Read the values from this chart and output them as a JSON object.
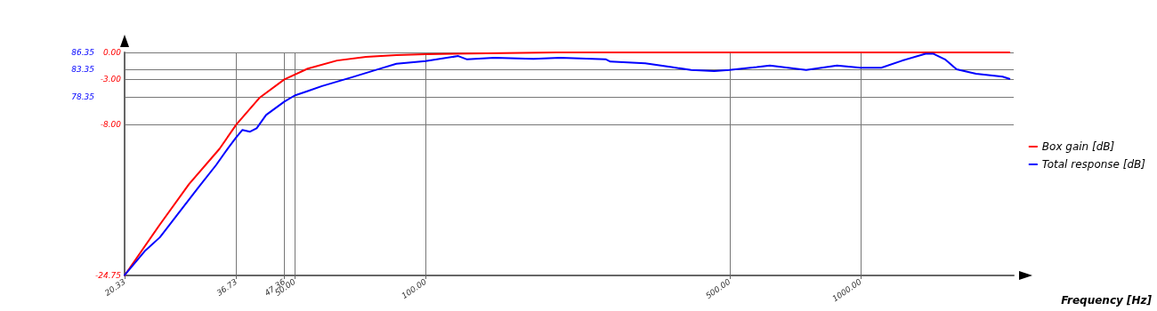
{
  "chart_data": {
    "type": "line",
    "xlabel": "Frequency [Hz]",
    "log": "x",
    "grid": true,
    "legend": "right",
    "marker": "none",
    "line_style": "solid",
    "xlim": [
      20.33,
      2250
    ],
    "xticks": [
      {
        "value": 20.33,
        "label": "20.33"
      },
      {
        "value": 36.73,
        "label": "36.73"
      },
      {
        "value": 47.36,
        "label": "47.36"
      },
      {
        "value": 50,
        "label": "50.00"
      },
      {
        "value": 100,
        "label": "100.00"
      },
      {
        "value": 500,
        "label": "500.00"
      },
      {
        "value": 1000,
        "label": "1000.00"
      }
    ],
    "ylim": [
      -24.75,
      0
    ],
    "yticks": [
      {
        "value": -24.75,
        "label": "-24.75"
      },
      {
        "value": -8,
        "label": "-8.00"
      },
      {
        "value": -3,
        "label": "-3.00"
      },
      {
        "value": 0,
        "label": "0.00"
      }
    ],
    "y2lim": [
      46.25,
      86.35
    ],
    "y2ticks": [
      {
        "value": 78.35,
        "label": "78.35"
      },
      {
        "value": 83.35,
        "label": "83.35"
      },
      {
        "value": 86.35,
        "label": "86.35"
      }
    ],
    "series": [
      {
        "name": "Box gain [dB]",
        "color": "#ff0000",
        "x": [
          20.33,
          24.5,
          28.6,
          33.6,
          36.73,
          41.6,
          47.36,
          53.6,
          62.6,
          73.0,
          85.7,
          100,
          200,
          500,
          2200
        ],
        "values": [
          -24.75,
          -19.1,
          -14.6,
          -10.7,
          -8.0,
          -5.0,
          -3.0,
          -1.8,
          -0.9,
          -0.5,
          -0.3,
          -0.2,
          0,
          0,
          0
        ]
      },
      {
        "name": "Total response [dB]",
        "color": "#0000ff",
        "axis": "y2",
        "x": [
          20.33,
          22.6,
          24.5,
          26.9,
          30.0,
          33.0,
          35.2,
          36.73,
          37.9,
          39.5,
          40.9,
          43.0,
          47.36,
          50,
          53.6,
          57.8,
          67.8,
          79.1,
          85.7,
          100,
          118.9,
          124.6,
          144,
          177,
          204,
          260,
          266,
          320,
          368,
          408,
          461,
          499,
          577,
          619,
          750,
          883,
          1000,
          1116,
          1249,
          1411,
          1472,
          1564,
          1663,
          1843,
          2121,
          2200
        ],
        "values": [
          46.3,
          50.6,
          53.1,
          57.2,
          62.0,
          66.1,
          69.2,
          71.1,
          72.4,
          72.1,
          72.7,
          75.1,
          77.5,
          78.6,
          79.4,
          80.3,
          81.9,
          83.5,
          84.3,
          84.8,
          85.7,
          85.1,
          85.4,
          85.2,
          85.4,
          85.1,
          84.7,
          84.4,
          83.7,
          83.2,
          83.0,
          83.2,
          83.7,
          84.0,
          83.2,
          84.0,
          83.6,
          83.6,
          84.9,
          86.1,
          86.1,
          85.1,
          83.3,
          82.5,
          82.0,
          81.6
        ]
      }
    ]
  }
}
